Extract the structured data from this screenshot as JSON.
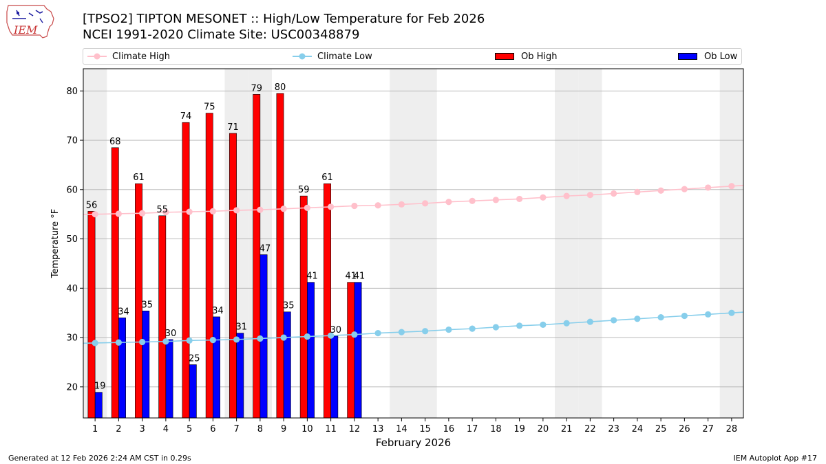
{
  "header": {
    "title_line1": "[TPSO2] TIPTON MESONET :: High/Low Temperature for Feb 2026",
    "title_line2": "NCEI 1991-2020 Climate Site: USC00348879",
    "logo_text": "IEM"
  },
  "legend": {
    "climate_high": "Climate High",
    "climate_low": "Climate Low",
    "ob_high": "Ob High",
    "ob_low": "Ob Low"
  },
  "footer": {
    "generated": "Generated at 12 Feb 2026 2:24 AM CST in 0.29s",
    "app": "IEM Autoplot App #17"
  },
  "colors": {
    "ob_high": "#ff0000",
    "ob_low": "#0000ff",
    "climate_high": "#ffc0cb",
    "climate_low": "#87ceeb",
    "weekend_shade": "#eeeeee",
    "grid": "#b0b0b0"
  },
  "chart_data": {
    "type": "bar",
    "title": "[TPSO2] TIPTON MESONET :: High/Low Temperature for Feb 2026",
    "subtitle": "NCEI 1991-2020 Climate Site: USC00348879",
    "xlabel": "February 2026",
    "ylabel": "Temperature °F",
    "ylim": [
      13.7,
      84.5
    ],
    "yticks": [
      20,
      30,
      40,
      50,
      60,
      70,
      80
    ],
    "days": [
      1,
      2,
      3,
      4,
      5,
      6,
      7,
      8,
      9,
      10,
      11,
      12,
      13,
      14,
      15,
      16,
      17,
      18,
      19,
      20,
      21,
      22,
      23,
      24,
      25,
      26,
      27,
      28
    ],
    "weekend_days": [
      1,
      7,
      8,
      14,
      15,
      21,
      22,
      28
    ],
    "series": [
      {
        "name": "Ob High",
        "kind": "bar",
        "values": [
          55.6,
          68.5,
          61.2,
          54.7,
          73.6,
          75.5,
          71.4,
          79.3,
          79.5,
          58.7,
          61.2,
          41.2
        ],
        "labels": [
          "56",
          "68",
          "61",
          "55",
          "74",
          "75",
          "71",
          "79",
          "80",
          "59",
          "61",
          "41"
        ]
      },
      {
        "name": "Ob Low",
        "kind": "bar",
        "values": [
          18.9,
          34.0,
          35.4,
          29.6,
          24.5,
          34.2,
          30.9,
          46.8,
          35.2,
          41.2,
          30.3,
          41.2
        ],
        "labels": [
          "19",
          "34",
          "35",
          "30",
          "25",
          "34",
          "31",
          "47",
          "35",
          "41",
          "30",
          "41"
        ]
      },
      {
        "name": "Climate High",
        "kind": "line",
        "values": [
          55.0,
          55.1,
          55.2,
          55.4,
          55.5,
          55.6,
          55.8,
          55.9,
          56.1,
          56.3,
          56.5,
          56.7,
          56.8,
          57.0,
          57.2,
          57.5,
          57.7,
          57.9,
          58.1,
          58.4,
          58.7,
          58.9,
          59.2,
          59.5,
          59.8,
          60.1,
          60.4,
          60.7
        ]
      },
      {
        "name": "Climate Low",
        "kind": "line",
        "values": [
          28.9,
          29.0,
          29.1,
          29.2,
          29.4,
          29.5,
          29.6,
          29.8,
          30.0,
          30.2,
          30.4,
          30.6,
          30.9,
          31.1,
          31.3,
          31.6,
          31.8,
          32.1,
          32.4,
          32.6,
          32.9,
          33.2,
          33.5,
          33.8,
          34.1,
          34.4,
          34.7,
          35.0
        ]
      }
    ],
    "grid": true,
    "legend_position": "top"
  }
}
